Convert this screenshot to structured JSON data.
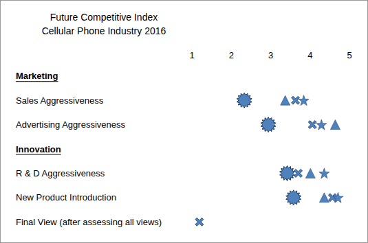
{
  "chart_data": {
    "type": "scatter",
    "title": "Future Competitive Index",
    "subtitle": "Cellular Phone Industry 2016",
    "categories": [
      "Marketing",
      "Sales Aggressiveness",
      "Advertising Aggressiveness",
      "Innovation",
      "R & D Aggressiveness",
      "New Product Introduction",
      "Final View (after assessing all views)"
    ],
    "xlim": [
      1,
      5
    ],
    "xticks": [
      1,
      2,
      3,
      4,
      5
    ],
    "grid": false,
    "series": [
      {
        "marker": "starburst",
        "color": "#4f81bd",
        "values": [
          null,
          2.33,
          2.94,
          null,
          3.42,
          3.58,
          null
        ]
      },
      {
        "marker": "triangle",
        "color": "#4f81bd",
        "values": [
          null,
          3.37,
          4.64,
          null,
          4.01,
          4.36,
          null
        ]
      },
      {
        "marker": "x",
        "color": "#4f81bd",
        "values": [
          null,
          3.63,
          4.06,
          null,
          3.7,
          4.57,
          1.19
        ]
      },
      {
        "marker": "star",
        "color": "#4f81bd",
        "values": [
          null,
          3.84,
          4.29,
          null,
          4.36,
          4.71,
          null
        ]
      }
    ]
  }
}
